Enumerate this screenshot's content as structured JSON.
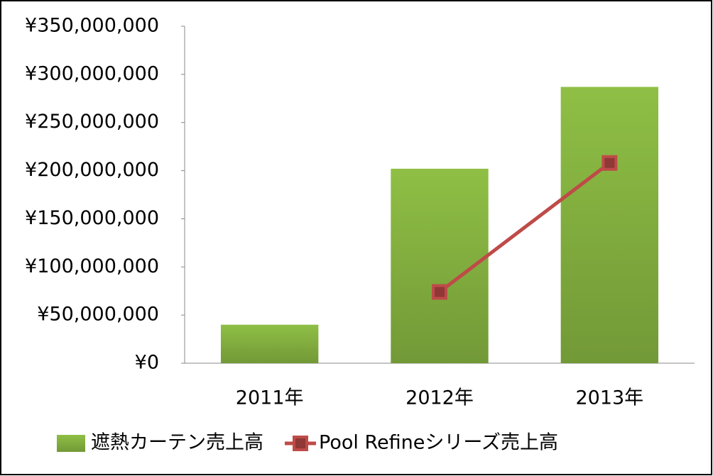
{
  "chart_data": {
    "type": "bar",
    "categories": [
      "2011年",
      "2012年",
      "2013年"
    ],
    "series": [
      {
        "name": "遮熱カーテン売上高",
        "type": "bar",
        "color": "#8fbf45",
        "values": [
          40000000,
          202000000,
          287000000
        ]
      },
      {
        "name": "Pool Refineシリーズ売上高",
        "type": "line",
        "color": "#be4b48",
        "values": [
          null,
          74000000,
          208000000
        ]
      }
    ],
    "ylim": [
      0,
      350000000
    ],
    "yticks": [
      {
        "value": 0,
        "label": "¥0"
      },
      {
        "value": 50000000,
        "label": "¥50,000,000"
      },
      {
        "value": 100000000,
        "label": "¥100,000,000"
      },
      {
        "value": 150000000,
        "label": "¥150,000,000"
      },
      {
        "value": 200000000,
        "label": "¥200,000,000"
      },
      {
        "value": 250000000,
        "label": "¥250,000,000"
      },
      {
        "value": 300000000,
        "label": "¥300,000,000"
      },
      {
        "value": 350000000,
        "label": "¥350,000,000"
      }
    ],
    "grid": false,
    "legend": "bottom"
  }
}
